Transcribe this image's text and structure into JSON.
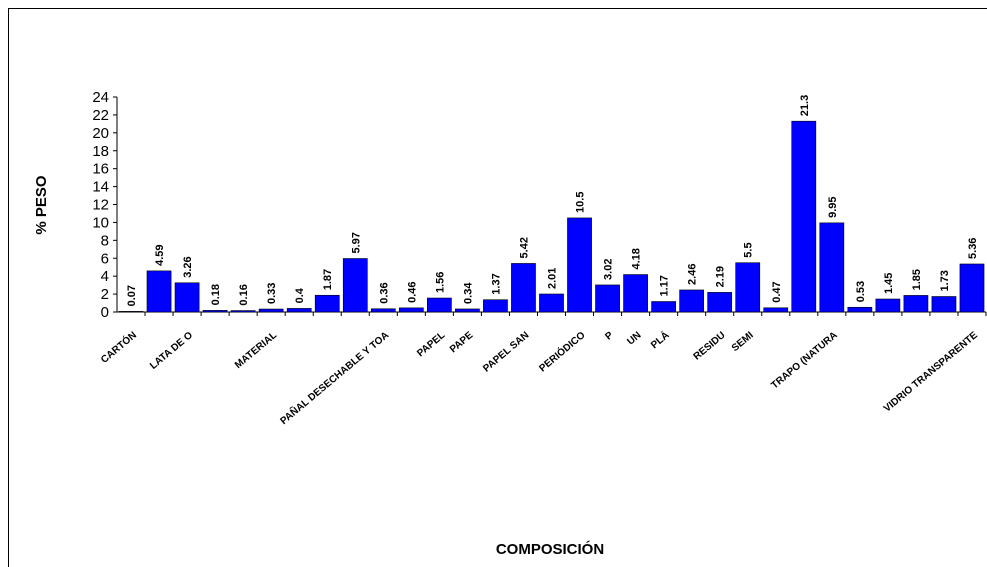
{
  "chart_data": {
    "type": "bar",
    "x_label": "COMPOSICIÓN",
    "y_label": "% PESO",
    "categories": [
      "CARTÓN",
      null,
      "LATA DE O",
      null,
      null,
      "MATERIAL",
      null,
      null,
      null,
      "PAÑAL DESECHABLE Y TOA",
      null,
      "PAPEL",
      "PAPE",
      null,
      "PAPEL SAN",
      null,
      "PERIÓDICO",
      "P",
      "UN",
      "PLÁ",
      null,
      "RESIDU",
      "SEMI",
      null,
      null,
      "TRAPO (NATURA",
      null,
      null,
      null,
      null,
      "VIDRIO TRANSPARENTE"
    ],
    "values": [
      0.07,
      4.59,
      3.26,
      0.18,
      0.16,
      0.33,
      0.4,
      1.87,
      5.97,
      0.36,
      0.46,
      1.56,
      0.34,
      1.37,
      5.42,
      2.01,
      10.5,
      3.02,
      4.18,
      1.17,
      2.46,
      2.19,
      5.5,
      0.47,
      21.3,
      9.95,
      0.53,
      1.45,
      1.85,
      1.73,
      5.36
    ],
    "color": "#0000ff",
    "ylim": [
      0,
      24
    ],
    "yticks": [
      0,
      2,
      4,
      6,
      8,
      10,
      12,
      14,
      16,
      18,
      20,
      22,
      24
    ],
    "grid": false
  }
}
